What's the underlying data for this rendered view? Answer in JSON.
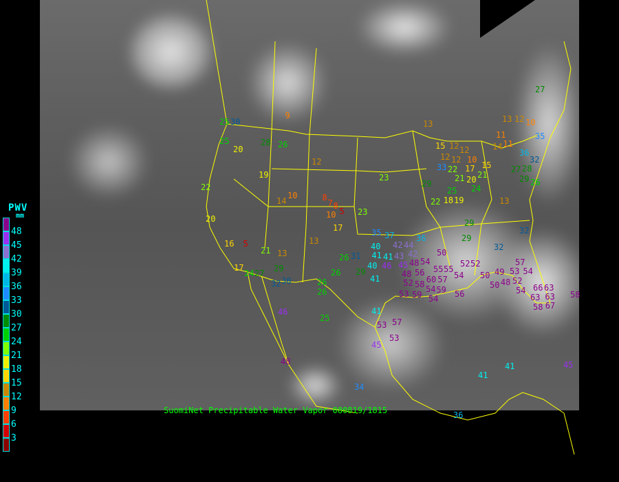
{
  "caption": "SuomiNet Precipitable Water Vapor 080819/1815",
  "legend": {
    "title": "PWV",
    "unit": "mm",
    "labels": [
      "48",
      "45",
      "42",
      "39",
      "36",
      "33",
      "30",
      "27",
      "24",
      "21",
      "18",
      "15",
      "12",
      "9",
      "6",
      "3"
    ],
    "colors": [
      "#8b008b",
      "#9a30f0",
      "#8a70d0",
      "#00f0f0",
      "#00b8e8",
      "#1e8cff",
      "#005a98",
      "#008c00",
      "#00d000",
      "#80ff00",
      "#f0f000",
      "#ffd700",
      "#cc8800",
      "#ff8000",
      "#ff4000",
      "#d40000",
      "#8b0000"
    ]
  },
  "stations": [
    27,
    13,
    12,
    10,
    35,
    13,
    11,
    14,
    11,
    12,
    15,
    12,
    12,
    12,
    10,
    17,
    15,
    33,
    22,
    21,
    21,
    20,
    36,
    28,
    32,
    29,
    27,
    26,
    29,
    25,
    24,
    22,
    18,
    19,
    13,
    23,
    9,
    25,
    30,
    28,
    26,
    12,
    20,
    19,
    25,
    22,
    10,
    14,
    8,
    7,
    8,
    10,
    5,
    23,
    17,
    20,
    35,
    37,
    36,
    40,
    41,
    41,
    40,
    46,
    42,
    44,
    42,
    43,
    45,
    48,
    48,
    54,
    29,
    29,
    32,
    32,
    50,
    16,
    5,
    21,
    13,
    13,
    26,
    31,
    29,
    17,
    24,
    27,
    29,
    30,
    32,
    26,
    26,
    26,
    41,
    57,
    54,
    53,
    52,
    56,
    55,
    55,
    60,
    57,
    52,
    52,
    54,
    49,
    48,
    50,
    50,
    52,
    58,
    54,
    53,
    59,
    54,
    59,
    56,
    54,
    66,
    63,
    63,
    63,
    58,
    67,
    58,
    46,
    25,
    41,
    53,
    57,
    53,
    45,
    48,
    34,
    41,
    41,
    45,
    36
  ],
  "colors": {
    "border": "#ffff00",
    "caption": "#00ff00",
    "legend_text": "#00ffff"
  }
}
